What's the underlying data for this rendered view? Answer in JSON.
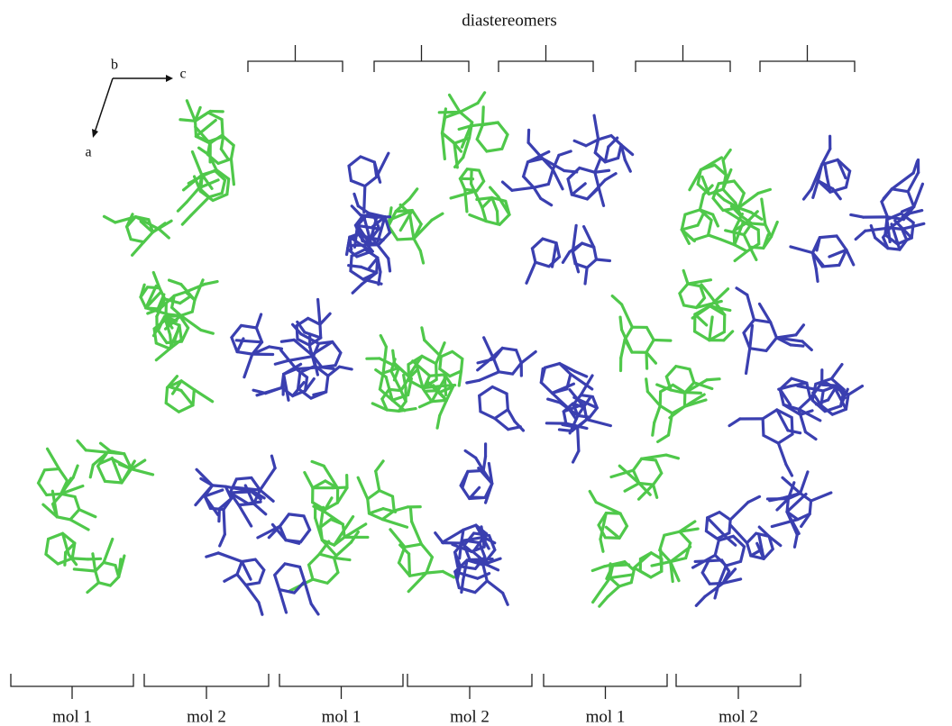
{
  "header": {
    "title": "diastereomers"
  },
  "axis_labels": {
    "b": "b",
    "c": "c",
    "a": "a"
  },
  "bottom_labels": [
    "mol 1",
    "mol 2",
    "mol 1",
    "mol 2",
    "mol 1",
    "mol 2"
  ]
}
